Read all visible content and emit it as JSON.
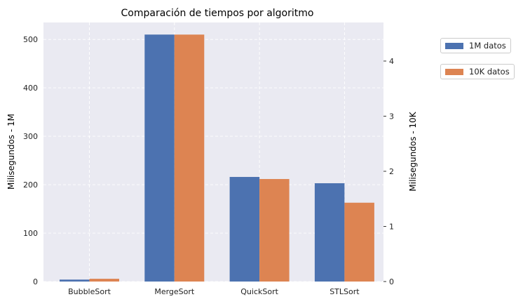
{
  "chart_data": {
    "type": "bar",
    "title": "Comparación de tiempos por algoritmo",
    "categories": [
      "BubbleSort",
      "MergeSort",
      "QuickSort",
      "STLSort"
    ],
    "ylabel_left": "Milisegundos - 1M",
    "ylabel_right": "Milisegundos - 10K",
    "ylim_left": [
      0,
      535
    ],
    "ylim_right": [
      0,
      4.7
    ],
    "yticks_left": [
      0,
      100,
      200,
      300,
      400,
      500
    ],
    "yticks_right": [
      0,
      1,
      2,
      3,
      4
    ],
    "grid": true,
    "legend_position": "outside-right",
    "series": [
      {
        "name": "1M datos",
        "axis": "left",
        "color": "#4c72b0",
        "values": [
          4,
          510,
          216,
          203
        ]
      },
      {
        "name": "10K datos",
        "axis": "right",
        "color": "#dd8452",
        "values": [
          0.05,
          4.48,
          1.86,
          1.43
        ]
      }
    ]
  }
}
